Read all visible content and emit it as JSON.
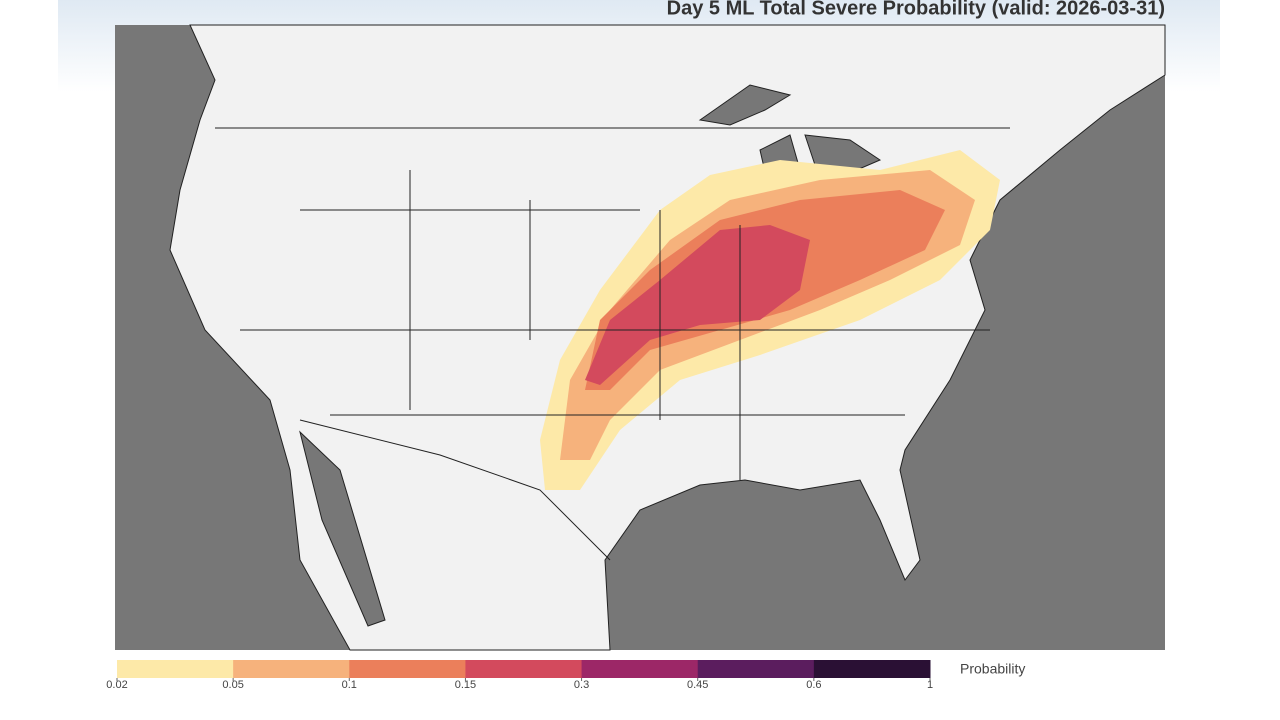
{
  "title": "Day 5 ML Total Severe Probability (valid: 2026-03-31)",
  "colorbar": {
    "label": "Probability",
    "ticks": [
      0.02,
      0.05,
      0.1,
      0.15,
      0.3,
      0.45,
      0.6,
      1
    ],
    "colors": [
      "#fde9a8",
      "#f6b27c",
      "#eb7f5b",
      "#d34a5d",
      "#9c2767",
      "#5b1d5e",
      "#2a1034"
    ]
  }
}
